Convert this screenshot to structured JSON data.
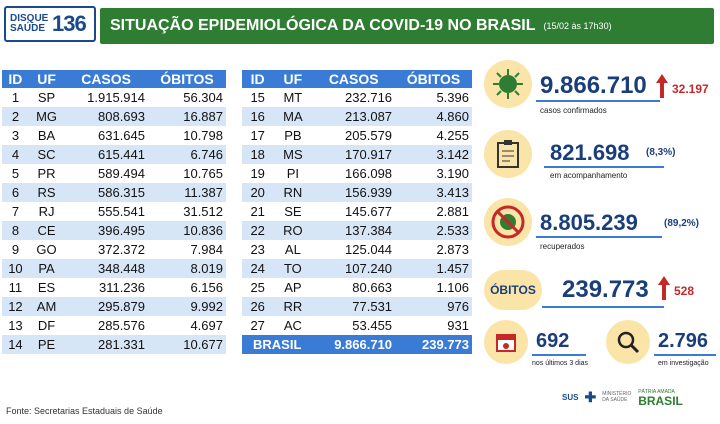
{
  "header": {
    "logo_top": "DISQUE SAÚDE",
    "logo_num": "136",
    "title": "SITUAÇÃO EPIDEMIOLÓGICA DA COVID-19 NO BRASIL",
    "date": "(15/02 às 17h30)"
  },
  "table_headers": [
    "ID",
    "UF",
    "CASOS",
    "ÓBITOS"
  ],
  "table_left": [
    [
      "1",
      "SP",
      "1.915.914",
      "56.304"
    ],
    [
      "2",
      "MG",
      "808.693",
      "16.887"
    ],
    [
      "3",
      "BA",
      "631.645",
      "10.798"
    ],
    [
      "4",
      "SC",
      "615.441",
      "6.746"
    ],
    [
      "5",
      "PR",
      "589.494",
      "10.765"
    ],
    [
      "6",
      "RS",
      "586.315",
      "11.387"
    ],
    [
      "7",
      "RJ",
      "555.541",
      "31.512"
    ],
    [
      "8",
      "CE",
      "396.495",
      "10.836"
    ],
    [
      "9",
      "GO",
      "372.372",
      "7.984"
    ],
    [
      "10",
      "PA",
      "348.448",
      "8.019"
    ],
    [
      "11",
      "ES",
      "311.236",
      "6.156"
    ],
    [
      "12",
      "AM",
      "295.879",
      "9.992"
    ],
    [
      "13",
      "DF",
      "285.576",
      "4.697"
    ],
    [
      "14",
      "PE",
      "281.331",
      "10.677"
    ]
  ],
  "table_right": [
    [
      "15",
      "MT",
      "232.716",
      "5.396"
    ],
    [
      "16",
      "MA",
      "213.087",
      "4.860"
    ],
    [
      "17",
      "PB",
      "205.579",
      "4.255"
    ],
    [
      "18",
      "MS",
      "170.917",
      "3.142"
    ],
    [
      "19",
      "PI",
      "166.098",
      "3.190"
    ],
    [
      "20",
      "RN",
      "156.939",
      "3.413"
    ],
    [
      "21",
      "SE",
      "145.677",
      "2.881"
    ],
    [
      "22",
      "RO",
      "137.384",
      "2.533"
    ],
    [
      "23",
      "AL",
      "125.044",
      "2.873"
    ],
    [
      "24",
      "TO",
      "107.240",
      "1.457"
    ],
    [
      "25",
      "AP",
      "80.663",
      "1.106"
    ],
    [
      "26",
      "RR",
      "77.531",
      "976"
    ],
    [
      "27",
      "AC",
      "53.455",
      "931"
    ]
  ],
  "total": {
    "label": "BRASIL",
    "casos": "9.866.710",
    "obitos": "239.773"
  },
  "stats": {
    "confirmados": {
      "value": "9.866.710",
      "increase": "32.197",
      "label": "casos confirmados"
    },
    "acompanhamento": {
      "value": "821.698",
      "pct": "(8,3%)",
      "label": "em acompanhamento"
    },
    "recuperados": {
      "value": "8.805.239",
      "pct": "(89,2%)",
      "label": "recuperados"
    },
    "obitos": {
      "badge": "ÓBITOS",
      "value": "239.773",
      "increase": "528"
    },
    "ultimos": {
      "value": "692",
      "label": "nos últimos 3 dias"
    },
    "investigacao": {
      "value": "2.796",
      "label": "em investigação"
    }
  },
  "footer": {
    "source": "Fonte: Secretarias Estaduais de Saúde"
  },
  "logos": {
    "sus": "SUS",
    "ministerio": "MINISTÉRIO DA SAÚDE",
    "brasil_top": "PÁTRIA AMADA",
    "brasil": "BRASIL"
  },
  "colors": {
    "green": "#2e7d32",
    "blue": "#3a7bd5",
    "navy": "#1a3e7a",
    "red": "#c62828",
    "circle": "#fbe4a8"
  }
}
